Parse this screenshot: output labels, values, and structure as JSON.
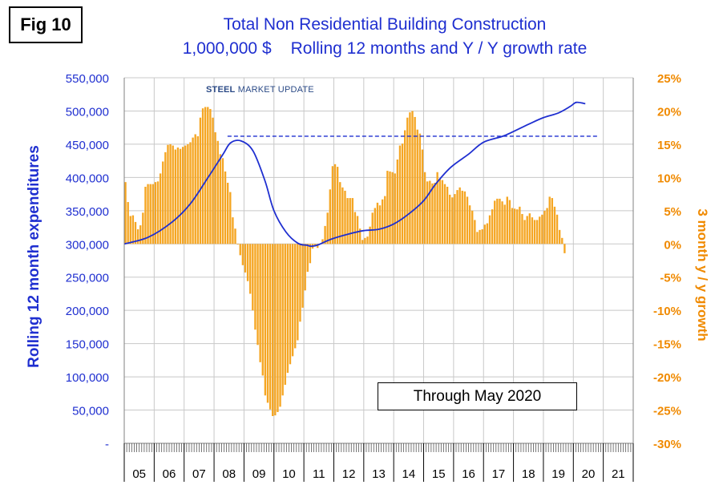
{
  "figure_label": "Fig 10",
  "logo": {
    "strong": "STEEL",
    "rest": " MARKET UPDATE"
  },
  "through_label": "Through May 2020",
  "chart_data": {
    "type": "bar+line",
    "title": "Total Non Residential Building Construction",
    "subtitle_left": "1,000,000 $",
    "subtitle_right": "Rolling 12 months and Y / Y growth rate",
    "ylabel_left": "Rolling 12 month expenditures",
    "ylabel_right": "3 month y / y growth",
    "ylim_left": [
      0,
      550000
    ],
    "ylim_right": [
      -30,
      25
    ],
    "left_ticks": [
      "-",
      "50,000",
      "100,000",
      "150,000",
      "200,000",
      "250,000",
      "300,000",
      "350,000",
      "400,000",
      "450,000",
      "500,000",
      "550,000"
    ],
    "right_ticks": [
      "-30%",
      "-25%",
      "-20%",
      "-15%",
      "-10%",
      "-5%",
      "0%",
      "5%",
      "10%",
      "15%",
      "20%",
      "25%"
    ],
    "year_labels": [
      "05",
      "06",
      "07",
      "08",
      "09",
      "10",
      "11",
      "12",
      "13",
      "14",
      "15",
      "16",
      "17",
      "18",
      "19",
      "20",
      "21"
    ],
    "reference_line_value": 462000,
    "colors": {
      "line": "#1f2fd0",
      "bars": "#f5a623",
      "right_axis": "#f08a00",
      "grid": "#c8c8c8"
    },
    "growth_bars": {
      "name": "3 month y / y growth (%)",
      "start": "2005-01",
      "values": [
        9.3,
        6.3,
        4.2,
        4.3,
        3.3,
        2.2,
        2.8,
        4.7,
        8.6,
        9.0,
        9.0,
        9.0,
        9.3,
        9.4,
        10.6,
        12.4,
        13.8,
        14.9,
        15.0,
        14.8,
        14.2,
        14.5,
        14.3,
        14.6,
        14.8,
        15.0,
        15.3,
        16.0,
        16.5,
        16.2,
        19.0,
        20.4,
        20.6,
        20.6,
        20.3,
        19.0,
        16.8,
        15.5,
        13.5,
        12.9,
        10.9,
        9.2,
        7.8,
        4.0,
        2.3,
        -0.1,
        -1.7,
        -3.2,
        -4.3,
        -5.6,
        -7.5,
        -10.0,
        -12.9,
        -15.2,
        -17.8,
        -19.8,
        -22.8,
        -23.9,
        -24.9,
        -25.9,
        -25.8,
        -25.3,
        -24.5,
        -22.8,
        -21.2,
        -19.4,
        -18.1,
        -16.9,
        -15.7,
        -14.5,
        -11.7,
        -9.6,
        -7.0,
        -4.2,
        -2.9,
        -0.7,
        -0.4,
        -0.6,
        0.0,
        0.7,
        2.7,
        4.7,
        8.2,
        11.7,
        12.0,
        11.6,
        9.3,
        8.5,
        8.0,
        6.9,
        6.9,
        6.9,
        4.8,
        4.2,
        2.3,
        0.6,
        0.9,
        1.1,
        2.6,
        4.7,
        5.4,
        6.2,
        5.8,
        6.7,
        7.2,
        11.0,
        10.9,
        10.8,
        10.6,
        12.7,
        14.8,
        15.1,
        17.1,
        19.0,
        19.8,
        20.0,
        19.1,
        17.2,
        16.6,
        14.2,
        10.8,
        9.4,
        9.5,
        9.1,
        9.2,
        10.8,
        9.8,
        9.6,
        9.0,
        8.6,
        7.4,
        7.0,
        7.5,
        8.1,
        8.5,
        8.0,
        7.9,
        7.1,
        5.8,
        5.0,
        3.6,
        1.8,
        2.1,
        2.2,
        2.9,
        3.1,
        4.3,
        5.2,
        6.5,
        6.8,
        6.8,
        6.4,
        5.9,
        7.1,
        6.6,
        5.4,
        5.3,
        5.2,
        5.6,
        4.5,
        3.6,
        4.2,
        4.6,
        4.0,
        3.6,
        3.6,
        4.1,
        4.4,
        5.0,
        5.4,
        7.1,
        6.9,
        5.6,
        4.4,
        2.1,
        0.9,
        -1.4
      ]
    },
    "rolling_line": {
      "name": "Rolling 12 month expenditures",
      "x": [
        2005.0,
        2005.8,
        2006.6,
        2007.2,
        2007.8,
        2008.3,
        2008.55,
        2008.9,
        2009.3,
        2009.7,
        2010.0,
        2010.4,
        2010.8,
        2011.1,
        2011.25,
        2011.5,
        2011.9,
        2012.5,
        2013.0,
        2013.5,
        2014.0,
        2014.5,
        2015.0,
        2015.4,
        2015.9,
        2016.5,
        2017.0,
        2017.7,
        2018.5,
        2019.0,
        2019.5,
        2019.9,
        2020.1,
        2020.4
      ],
      "y": [
        300000,
        310000,
        333000,
        360000,
        400000,
        435000,
        452000,
        455000,
        440000,
        395000,
        350000,
        318000,
        301000,
        298000,
        296500,
        299000,
        307000,
        315000,
        320000,
        322000,
        330000,
        345000,
        365000,
        390000,
        415000,
        435000,
        453000,
        463000,
        480000,
        490000,
        497000,
        507000,
        513000,
        511000
      ]
    }
  }
}
